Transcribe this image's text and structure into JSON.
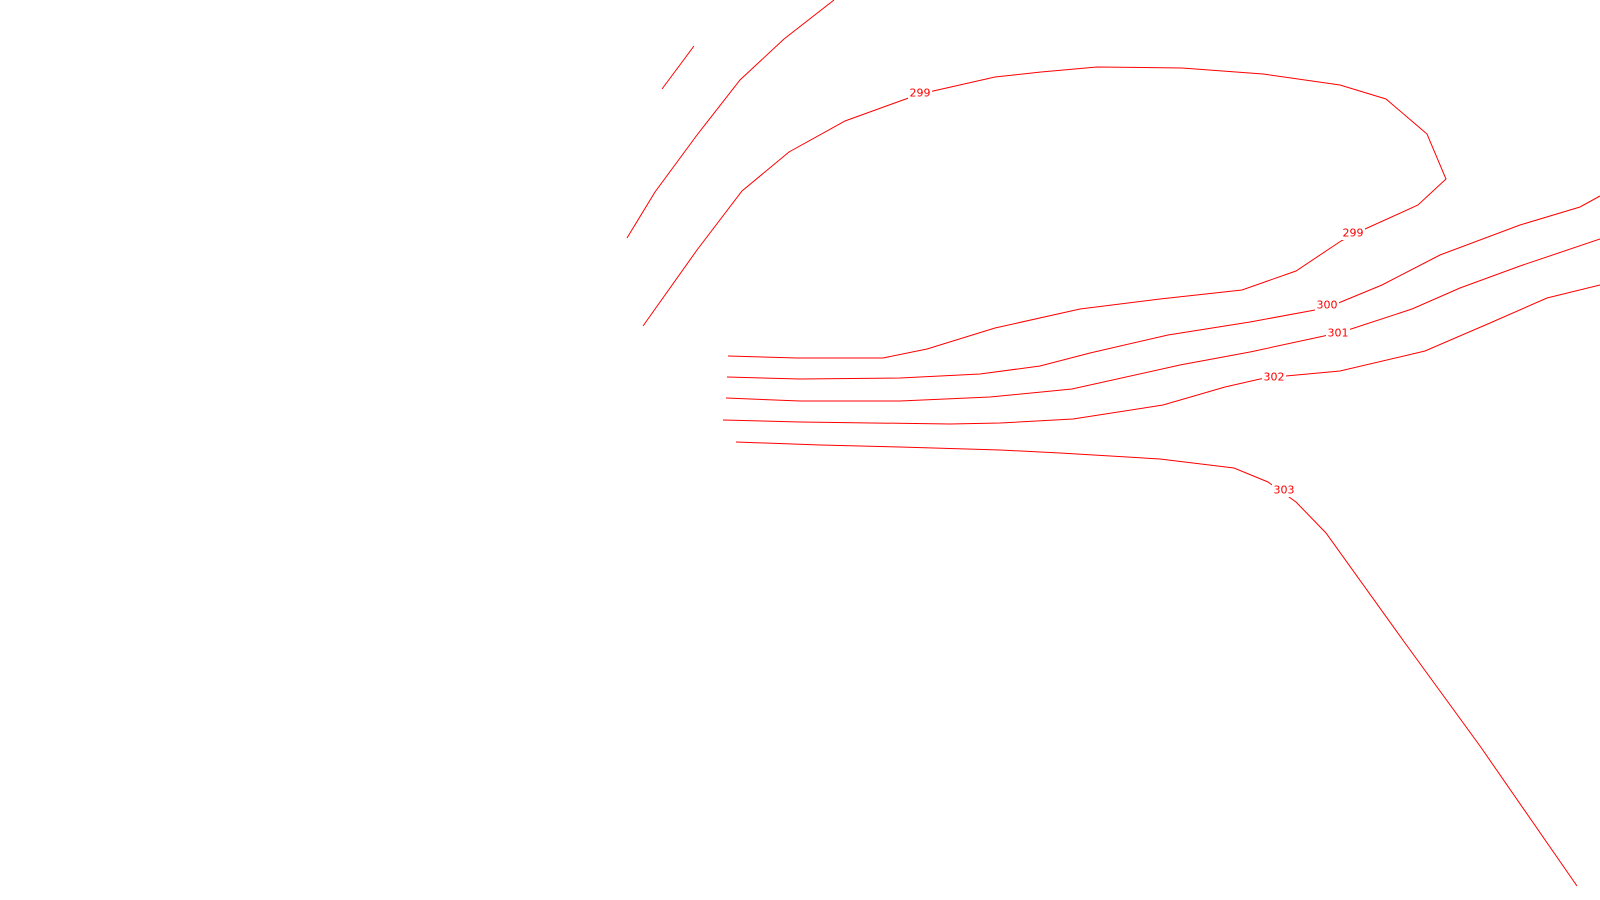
{
  "map": {
    "background_color": "#ffffff",
    "contour_color": "#ff0000",
    "contour_labels": {
      "label_299_upper": "299",
      "label_299_right": "299",
      "label_300": "300",
      "label_301": "301",
      "label_302": "302",
      "label_303": "303"
    }
  }
}
